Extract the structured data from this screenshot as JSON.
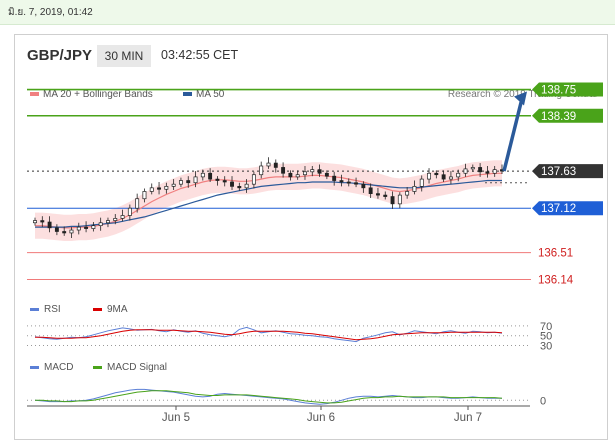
{
  "timestamp": "มิ.ย. 7, 2019, 01:42",
  "header": {
    "pair": "GBP/JPY",
    "timeframe": "30 MIN",
    "time": "03:42:55 CET"
  },
  "colors": {
    "bb": "#f08080",
    "ma50": "#2b5a9a",
    "green": "#4aa31a",
    "blue": "#1f5fd6",
    "red": "#f07a7a",
    "price": "#333333",
    "rsi": "#5b7fd6",
    "rsi_ma": "#d90000",
    "macd": "#5b7fd6",
    "macd_signal": "#4aa31a"
  },
  "chart_data": [
    {
      "type": "candlestick",
      "title": "GBP/JPY",
      "legend": [
        {
          "label": "MA 20 + Bollinger Bands",
          "color": "#f08080"
        },
        {
          "label": "MA 50",
          "color": "#2b5a9a"
        }
      ],
      "source": "Research © 2019 Trading Central",
      "x_ticks": [
        "Jun 5",
        "Jun 6",
        "Jun 7"
      ],
      "levels": [
        {
          "value": 138.75,
          "label": "138.75",
          "color": "#4aa31a",
          "kind": "resistance"
        },
        {
          "value": 138.39,
          "label": "138.39",
          "color": "#4aa31a",
          "kind": "resistance"
        },
        {
          "value": 137.63,
          "label": "137.63",
          "color": "#333333",
          "kind": "last-price"
        },
        {
          "value": 137.12,
          "label": "137.12",
          "color": "#1f5fd6",
          "kind": "pivot"
        },
        {
          "value": 136.51,
          "label": "136.51",
          "color": "#f07a7a",
          "kind": "support"
        },
        {
          "value": 136.14,
          "label": "136.14",
          "color": "#f07a7a",
          "kind": "support"
        }
      ],
      "ylim": [
        135.9,
        138.95
      ],
      "close": [
        136.95,
        136.93,
        136.85,
        136.8,
        136.78,
        136.82,
        136.86,
        136.84,
        136.88,
        136.92,
        136.95,
        136.98,
        137.02,
        137.12,
        137.25,
        137.35,
        137.4,
        137.38,
        137.42,
        137.45,
        137.5,
        137.47,
        137.55,
        137.6,
        137.52,
        137.5,
        137.48,
        137.42,
        137.4,
        137.45,
        137.58,
        137.7,
        137.74,
        137.68,
        137.6,
        137.55,
        137.58,
        137.62,
        137.65,
        137.6,
        137.56,
        137.5,
        137.48,
        137.47,
        137.45,
        137.4,
        137.32,
        137.3,
        137.28,
        137.18,
        137.3,
        137.35,
        137.42,
        137.52,
        137.6,
        137.58,
        137.52,
        137.55,
        137.6,
        137.66,
        137.68,
        137.62,
        137.6,
        137.65,
        137.63
      ],
      "ma20": [
        136.88,
        136.88,
        136.87,
        136.86,
        136.85,
        136.85,
        136.86,
        136.86,
        136.87,
        136.89,
        136.91,
        136.94,
        136.98,
        137.03,
        137.09,
        137.15,
        137.21,
        137.26,
        137.31,
        137.35,
        137.39,
        137.42,
        137.45,
        137.48,
        137.5,
        137.51,
        137.51,
        137.5,
        137.49,
        137.49,
        137.5,
        137.52,
        137.54,
        137.55,
        137.55,
        137.55,
        137.55,
        137.56,
        137.57,
        137.57,
        137.56,
        137.55,
        137.54,
        137.52,
        137.5,
        137.48,
        137.45,
        137.42,
        137.39,
        137.36,
        137.35,
        137.36,
        137.38,
        137.4,
        137.43,
        137.46,
        137.48,
        137.5,
        137.52,
        137.55,
        137.57,
        137.58,
        137.59,
        137.6,
        137.6
      ],
      "bb_width": 0.18,
      "ma50": [
        136.86,
        136.86,
        136.86,
        136.86,
        136.86,
        136.87,
        136.87,
        136.88,
        136.89,
        136.9,
        136.91,
        136.92,
        136.94,
        136.96,
        136.98,
        137.0,
        137.03,
        137.06,
        137.09,
        137.12,
        137.15,
        137.18,
        137.21,
        137.24,
        137.27,
        137.3,
        137.32,
        137.34,
        137.36,
        137.38,
        137.4,
        137.42,
        137.43,
        137.44,
        137.45,
        137.46,
        137.47,
        137.47,
        137.48,
        137.48,
        137.48,
        137.48,
        137.47,
        137.47,
        137.46,
        137.45,
        137.44,
        137.43,
        137.42,
        137.41,
        137.4,
        137.4,
        137.4,
        137.41,
        137.42,
        137.43,
        137.44,
        137.45,
        137.46,
        137.47,
        137.48,
        137.49,
        137.5,
        137.5,
        137.5
      ]
    },
    {
      "type": "line",
      "title": "RSI",
      "series": [
        {
          "name": "RSI",
          "color": "#5b7fd6"
        },
        {
          "name": "9MA",
          "color": "#d90000"
        }
      ],
      "y_ticks": [
        70,
        50,
        30
      ],
      "ylim": [
        25,
        78
      ],
      "rsi": [
        48,
        46,
        44,
        43,
        45,
        47,
        46,
        48,
        52,
        56,
        60,
        63,
        66,
        64,
        61,
        62,
        63,
        60,
        58,
        62,
        59,
        57,
        60,
        55,
        52,
        50,
        48,
        51,
        63,
        67,
        62,
        56,
        58,
        60,
        57,
        54,
        53,
        51,
        50,
        48,
        47,
        44,
        42,
        40,
        38,
        45,
        48,
        52,
        56,
        58,
        52,
        55,
        60,
        58,
        56,
        54,
        58,
        60,
        57,
        55,
        59,
        58,
        56,
        57,
        55
      ],
      "rsi_ma": [
        47,
        47,
        46,
        45,
        45,
        45,
        46,
        46,
        48,
        50,
        53,
        56,
        59,
        61,
        62,
        62,
        62,
        61,
        61,
        61,
        60,
        59,
        59,
        58,
        57,
        55,
        53,
        52,
        54,
        57,
        59,
        59,
        59,
        59,
        59,
        58,
        57,
        55,
        54,
        52,
        50,
        48,
        46,
        44,
        42,
        43,
        44,
        46,
        49,
        52,
        53,
        54,
        55,
        56,
        56,
        56,
        56,
        57,
        57,
        57,
        57,
        57,
        57,
        57,
        56
      ]
    },
    {
      "type": "line",
      "title": "MACD",
      "series": [
        {
          "name": "MACD",
          "color": "#5b7fd6"
        },
        {
          "name": "MACD Signal",
          "color": "#4aa31a"
        }
      ],
      "y_ticks": [
        0
      ],
      "ylim": [
        -0.1,
        0.3
      ],
      "macd": [
        0.0,
        -0.01,
        -0.02,
        -0.02,
        -0.02,
        -0.01,
        -0.01,
        0.0,
        0.02,
        0.05,
        0.08,
        0.11,
        0.13,
        0.15,
        0.16,
        0.16,
        0.15,
        0.14,
        0.13,
        0.12,
        0.1,
        0.08,
        0.06,
        0.05,
        0.06,
        0.09,
        0.1,
        0.09,
        0.08,
        0.07,
        0.06,
        0.05,
        0.04,
        0.03,
        0.02,
        0.0,
        -0.02,
        -0.04,
        -0.05,
        -0.06,
        -0.05,
        -0.03,
        0.0,
        0.03,
        0.05,
        0.06,
        0.06,
        0.05,
        0.06,
        0.07,
        0.06,
        0.05,
        0.04,
        0.04,
        0.05,
        0.05,
        0.04,
        0.03,
        0.03,
        0.04,
        0.05,
        0.04,
        0.03,
        0.03,
        0.03
      ],
      "signal": [
        0.0,
        0.0,
        -0.01,
        -0.01,
        -0.02,
        -0.02,
        -0.01,
        -0.01,
        0.0,
        0.02,
        0.04,
        0.06,
        0.08,
        0.1,
        0.12,
        0.13,
        0.14,
        0.14,
        0.14,
        0.13,
        0.12,
        0.11,
        0.09,
        0.08,
        0.07,
        0.07,
        0.08,
        0.08,
        0.08,
        0.08,
        0.07,
        0.06,
        0.05,
        0.04,
        0.03,
        0.02,
        0.01,
        -0.01,
        -0.02,
        -0.03,
        -0.04,
        -0.04,
        -0.03,
        -0.01,
        0.01,
        0.03,
        0.04,
        0.04,
        0.05,
        0.05,
        0.06,
        0.05,
        0.05,
        0.05,
        0.05,
        0.05,
        0.05,
        0.04,
        0.04,
        0.04,
        0.04,
        0.04,
        0.04,
        0.04,
        0.03
      ]
    }
  ]
}
